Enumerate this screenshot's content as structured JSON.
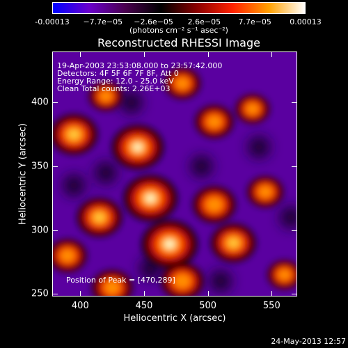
{
  "colorbar": {
    "tick_labels": [
      "-0.00013",
      "−7.7e−05",
      "−2.6e−05",
      "2.6e−05",
      "7.7e−05",
      "0.00013"
    ],
    "units_text": "(photons cm⁻² s⁻¹ asec⁻²)",
    "colors": [
      "#0000ff",
      "#6a00cc",
      "#4a0050",
      "#000000",
      "#8a0000",
      "#ff2200",
      "#ffa000",
      "#ffffff"
    ]
  },
  "title": "Reconstructed RHESSI Image",
  "annotations": {
    "time_range": "19-Apr-2003 23:53:08.000 to 23:57:42.000",
    "detectors": "Detectors: 4F 5F 6F 7F 8F, Att 0",
    "energy": "Energy Range: 12.0 - 25.0 keV",
    "clean": "Clean     Total counts: 2.26E+03",
    "peak": "Position of Peak = [470,289]"
  },
  "axes": {
    "xlabel": "Heliocentric X (arcsec)",
    "ylabel": "Heliocentric Y (arcsec)",
    "xticks": [
      "400",
      "450",
      "500",
      "550"
    ],
    "yticks": [
      "400",
      "350",
      "300",
      "250"
    ],
    "xlim": [
      378,
      570
    ],
    "ylim": [
      248,
      440
    ]
  },
  "image_blobs": {
    "background": "#5a00a0",
    "peak_position": [
      470,
      289
    ],
    "bright_sources": [
      {
        "x": 470,
        "y": 289,
        "level": 1.0
      },
      {
        "x": 455,
        "y": 325,
        "level": 0.95
      },
      {
        "x": 445,
        "y": 365,
        "level": 0.9
      },
      {
        "x": 415,
        "y": 310,
        "level": 0.75
      },
      {
        "x": 395,
        "y": 375,
        "level": 0.8
      },
      {
        "x": 505,
        "y": 320,
        "level": 0.7
      },
      {
        "x": 520,
        "y": 290,
        "level": 0.75
      },
      {
        "x": 425,
        "y": 255,
        "level": 0.65
      },
      {
        "x": 505,
        "y": 385,
        "level": 0.6
      },
      {
        "x": 545,
        "y": 330,
        "level": 0.55
      },
      {
        "x": 480,
        "y": 260,
        "level": 0.7
      },
      {
        "x": 390,
        "y": 280,
        "level": 0.6
      },
      {
        "x": 535,
        "y": 395,
        "level": 0.5
      },
      {
        "x": 420,
        "y": 405,
        "level": 0.5
      },
      {
        "x": 480,
        "y": 415,
        "level": 0.55
      },
      {
        "x": 560,
        "y": 265,
        "level": 0.5
      }
    ],
    "dark_spots": [
      {
        "x": 440,
        "y": 400
      },
      {
        "x": 420,
        "y": 345
      },
      {
        "x": 395,
        "y": 335
      },
      {
        "x": 495,
        "y": 350
      },
      {
        "x": 540,
        "y": 365
      },
      {
        "x": 455,
        "y": 270
      },
      {
        "x": 510,
        "y": 260
      },
      {
        "x": 565,
        "y": 310
      }
    ]
  },
  "timestamp": "24-May-2013 12:57"
}
